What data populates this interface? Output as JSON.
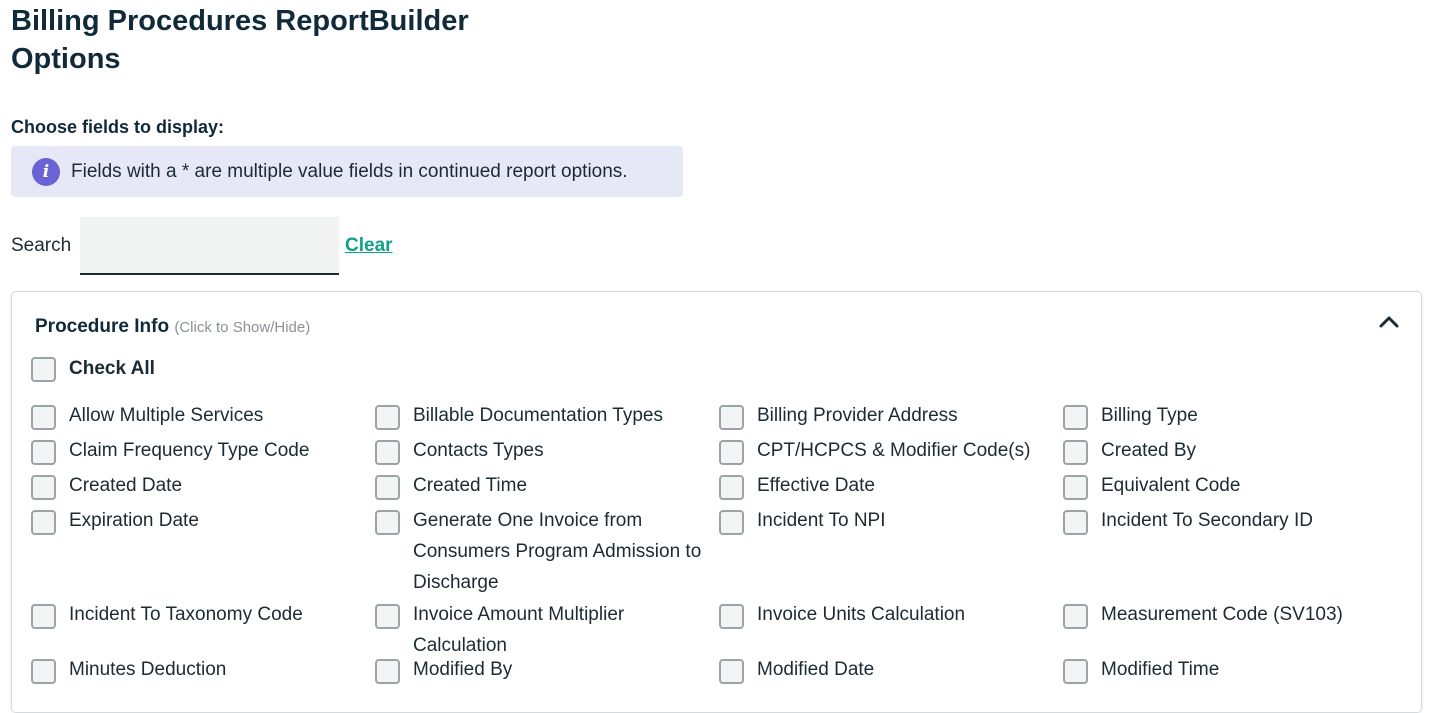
{
  "page_title": "Billing Procedures ReportBuilder Options",
  "choose_label": "Choose fields to display:",
  "info": {
    "icon": "info-icon",
    "text": "Fields with a * are multiple value fields in continued report options."
  },
  "search": {
    "label": "Search",
    "value": "",
    "clear_label": "Clear"
  },
  "section": {
    "title": "Procedure Info",
    "hint": "(Click to Show/Hide)",
    "expanded": true,
    "check_all_label": "Check All",
    "fields": [
      "Allow Multiple Services",
      "Billable Documentation Types",
      "Billing Provider Address",
      "Billing Type",
      "Claim Frequency Type Code",
      "Contacts Types",
      "CPT/HCPCS & Modifier Code(s)",
      "Created By",
      "Created Date",
      "Created Time",
      "Effective Date",
      "Equivalent Code",
      "Expiration Date",
      "Generate One Invoice from Consumers Program Admission to Discharge",
      "Incident To NPI",
      "Incident To Secondary ID",
      "Incident To Taxonomy Code",
      "Invoice Amount Multiplier Calculation",
      "Invoice Units Calculation",
      "Measurement Code (SV103)",
      "Minutes Deduction",
      "Modified By",
      "Modified Date",
      "Modified Time"
    ]
  },
  "colors": {
    "accent": "#13a089",
    "info_bg": "#e7e8f7",
    "info_icon": "#6a63d3",
    "heading": "#102a3a"
  }
}
